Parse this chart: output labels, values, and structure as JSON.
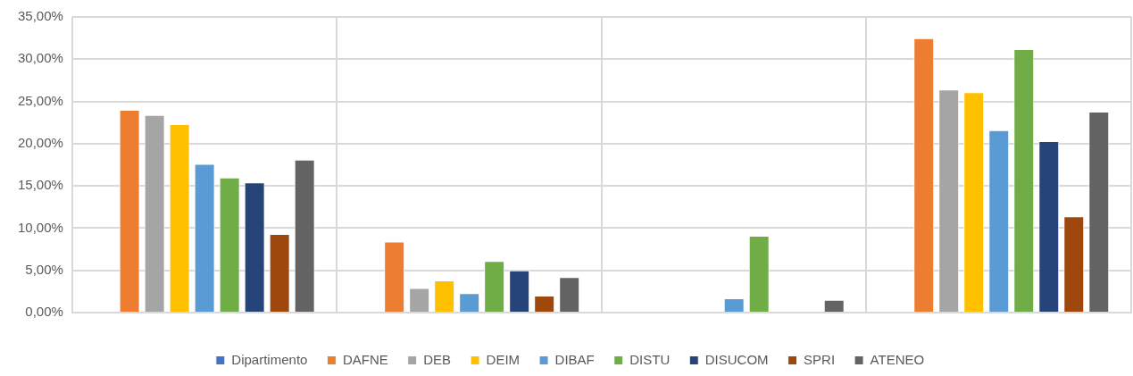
{
  "chart_data": {
    "type": "bar",
    "categories": [
      null,
      null,
      null,
      null
    ],
    "series": [
      {
        "name": "Dipartimento",
        "color": "#4472c4",
        "values": [
          null,
          null,
          null,
          null
        ]
      },
      {
        "name": "DAFNE",
        "color": "#ed7d31",
        "values": [
          24.0,
          8.4,
          0,
          32.5
        ]
      },
      {
        "name": "DEB",
        "color": "#a5a5a5",
        "values": [
          23.4,
          2.9,
          0,
          26.4
        ]
      },
      {
        "name": "DEIM",
        "color": "#ffc000",
        "values": [
          22.3,
          3.8,
          0,
          26.1
        ]
      },
      {
        "name": "DIBAF",
        "color": "#5b9bd5",
        "values": [
          17.6,
          2.3,
          1.7,
          21.6
        ]
      },
      {
        "name": "DISTU",
        "color": "#70ad47",
        "values": [
          16.0,
          6.1,
          9.1,
          31.2
        ]
      },
      {
        "name": "DISUCOM",
        "color": "#264478",
        "values": [
          15.4,
          5.0,
          0,
          20.3
        ]
      },
      {
        "name": "SPRI",
        "color": "#9e480e",
        "values": [
          9.3,
          2.0,
          0,
          11.4
        ]
      },
      {
        "name": "ATENEO",
        "color": "#636363",
        "values": [
          18.1,
          4.2,
          1.5,
          23.8
        ]
      }
    ],
    "ylim": [
      0,
      35
    ],
    "yticks": [
      {
        "value": 0,
        "label": "0,00%"
      },
      {
        "value": 5,
        "label": "5,00%"
      },
      {
        "value": 10,
        "label": "10,00%"
      },
      {
        "value": 15,
        "label": "15,00%"
      },
      {
        "value": 20,
        "label": "20,00%"
      },
      {
        "value": 25,
        "label": "25,00%"
      },
      {
        "value": 30,
        "label": "30,00%"
      },
      {
        "value": 35,
        "label": "35,00%"
      }
    ],
    "grid": true,
    "legend": "bottom"
  }
}
